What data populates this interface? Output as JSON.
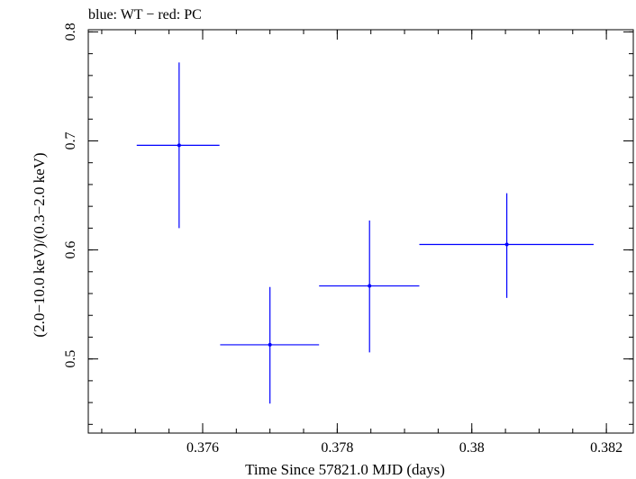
{
  "chart_data": {
    "type": "scatter",
    "title": "blue: WT − red: PC",
    "xlabel": "Time Since 57821.0 MJD (days)",
    "ylabel": "(2.0−10.0 keV)/(0.3−2.0 keV)",
    "xlim": [
      0.3743,
      0.3824
    ],
    "ylim": [
      0.432,
      0.802
    ],
    "x_ticks": [
      {
        "value": 0.376,
        "label": "0.376"
      },
      {
        "value": 0.378,
        "label": "0.378"
      },
      {
        "value": 0.38,
        "label": "0.38"
      },
      {
        "value": 0.382,
        "label": "0.382"
      }
    ],
    "y_ticks": [
      {
        "value": 0.5,
        "label": "0.5"
      },
      {
        "value": 0.6,
        "label": "0.6"
      },
      {
        "value": 0.7,
        "label": "0.7"
      },
      {
        "value": 0.8,
        "label": "0.8"
      }
    ],
    "x_minor_step": 0.0005,
    "y_minor_step": 0.02,
    "grid": false,
    "series": [
      {
        "name": "WT",
        "color": "#0000ff",
        "points": [
          {
            "x": 0.37565,
            "xlo": 0.37502,
            "xhi": 0.37625,
            "y": 0.696,
            "ylo": 0.62,
            "yhi": 0.772
          },
          {
            "x": 0.377,
            "xlo": 0.37626,
            "xhi": 0.37773,
            "y": 0.513,
            "ylo": 0.459,
            "yhi": 0.566
          },
          {
            "x": 0.37848,
            "xlo": 0.37773,
            "xhi": 0.37922,
            "y": 0.567,
            "ylo": 0.506,
            "yhi": 0.627
          },
          {
            "x": 0.38052,
            "xlo": 0.37922,
            "xhi": 0.38181,
            "y": 0.605,
            "ylo": 0.556,
            "yhi": 0.652
          }
        ]
      }
    ]
  }
}
